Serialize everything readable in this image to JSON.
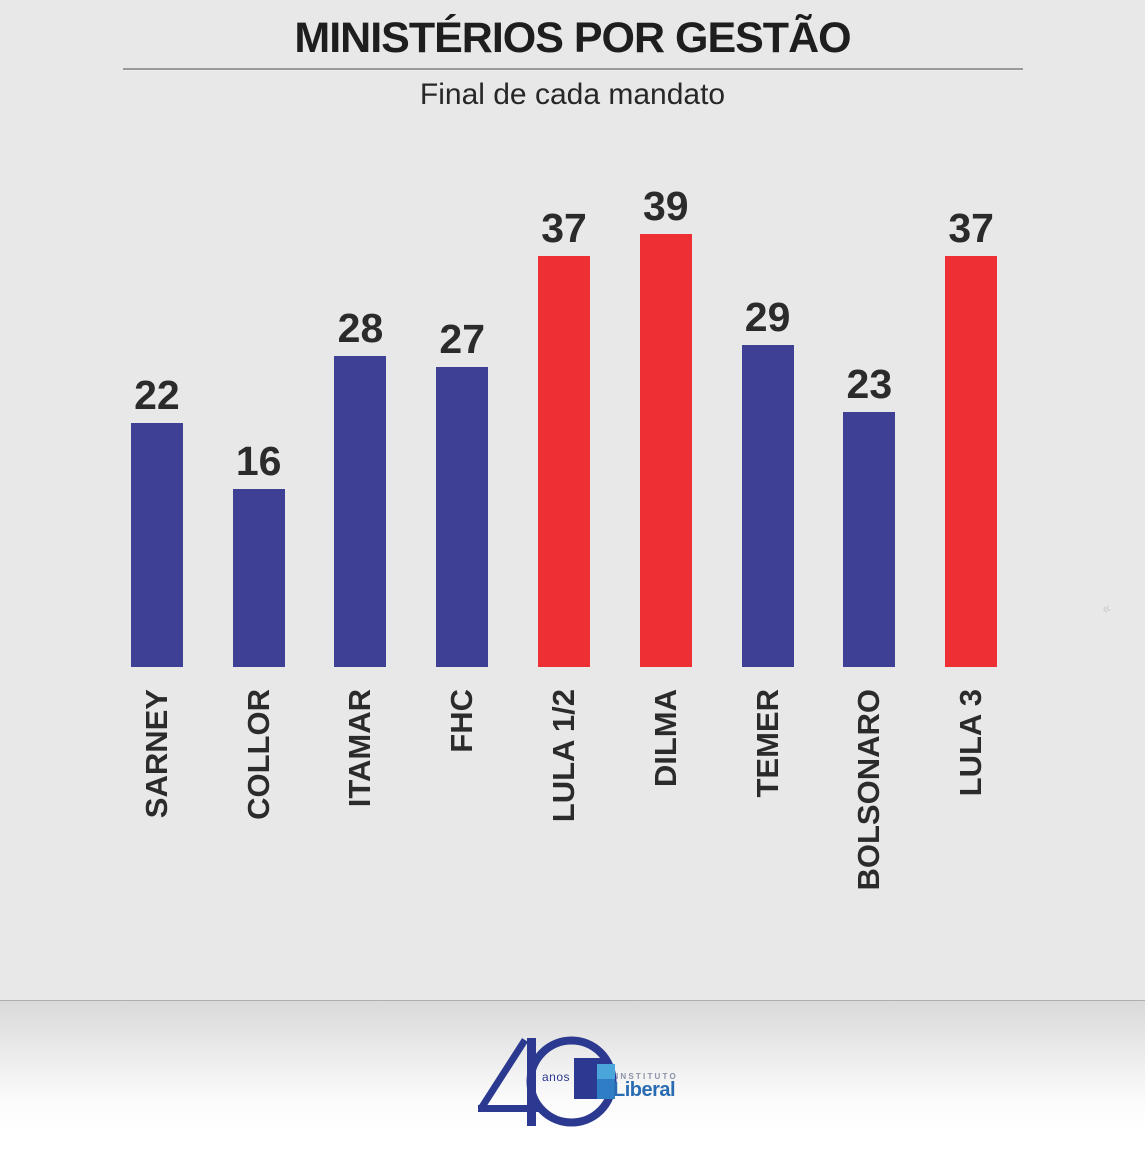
{
  "header": {
    "title": "MINISTÉRIOS POR GESTÃO",
    "subtitle": "Final de cada mandato"
  },
  "chart_data": {
    "type": "bar",
    "title": "MINISTÉRIOS POR GESTÃO",
    "subtitle": "Final de cada mandato",
    "categories": [
      "SARNEY",
      "COLLOR",
      "ITAMAR",
      "FHC",
      "LULA 1/2",
      "DILMA",
      "TEMER",
      "BOLSONARO",
      "LULA 3"
    ],
    "values": [
      22,
      16,
      28,
      27,
      37,
      39,
      29,
      23,
      37
    ],
    "bar_colors": [
      "#3E4096",
      "#3E4096",
      "#3E4096",
      "#3E4096",
      "#EE2F34",
      "#EE2F34",
      "#3E4096",
      "#3E4096",
      "#EE2F34"
    ],
    "xlabel": "",
    "ylabel": "",
    "ylim": [
      0,
      39
    ],
    "grid": false,
    "legend": "none",
    "value_labels": "above bars",
    "category_label_orientation": "vertical, reading bottom-to-top"
  },
  "footer_logo": {
    "forty": "40",
    "anos": "anos",
    "instituto": "INSTITUTO",
    "liberal": "Liberal",
    "colors": {
      "navy": "#2B3990",
      "medium_blue": "#2F7EC5",
      "light_blue": "#4AA6DA",
      "instituto_gray": "#8B92A7",
      "liberal_blue": "#2A6CB3"
    }
  },
  "artifact_glyph": "«"
}
